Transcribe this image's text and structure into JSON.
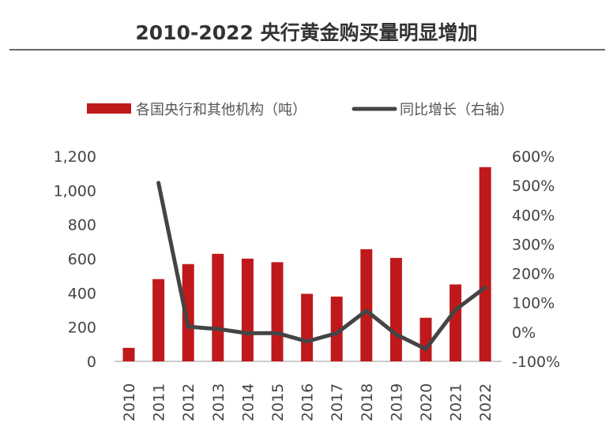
{
  "chart_data": {
    "type": "bar+line",
    "title": "2010-2022 央行黄金购买量明显增加",
    "categories": [
      "2010",
      "2011",
      "2012",
      "2013",
      "2014",
      "2015",
      "2016",
      "2017",
      "2018",
      "2019",
      "2020",
      "2021",
      "2022"
    ],
    "series": [
      {
        "name": "各国央行和其他机构（吨）",
        "type": "bar",
        "axis": "left",
        "color": "#c0191c",
        "values": [
          79,
          481,
          569,
          629,
          601,
          580,
          395,
          379,
          656,
          605,
          255,
          450,
          1136
        ]
      },
      {
        "name": "同比增长（右轴）",
        "type": "line",
        "axis": "right",
        "color": "#444444",
        "values": [
          null,
          509,
          18,
          10.5,
          -4,
          -3.5,
          -32,
          -4,
          73,
          -8,
          -58,
          76,
          152
        ]
      }
    ],
    "left_axis": {
      "range": [
        0,
        1200
      ],
      "ticks": [
        "0",
        "200",
        "400",
        "600",
        "800",
        "1,000",
        "1,200"
      ]
    },
    "right_axis": {
      "range": [
        -100,
        600
      ],
      "ticks": [
        "-100%",
        "0%",
        "100%",
        "200%",
        "300%",
        "400%",
        "500%",
        "600%"
      ]
    },
    "grid": false,
    "legend": "top"
  }
}
